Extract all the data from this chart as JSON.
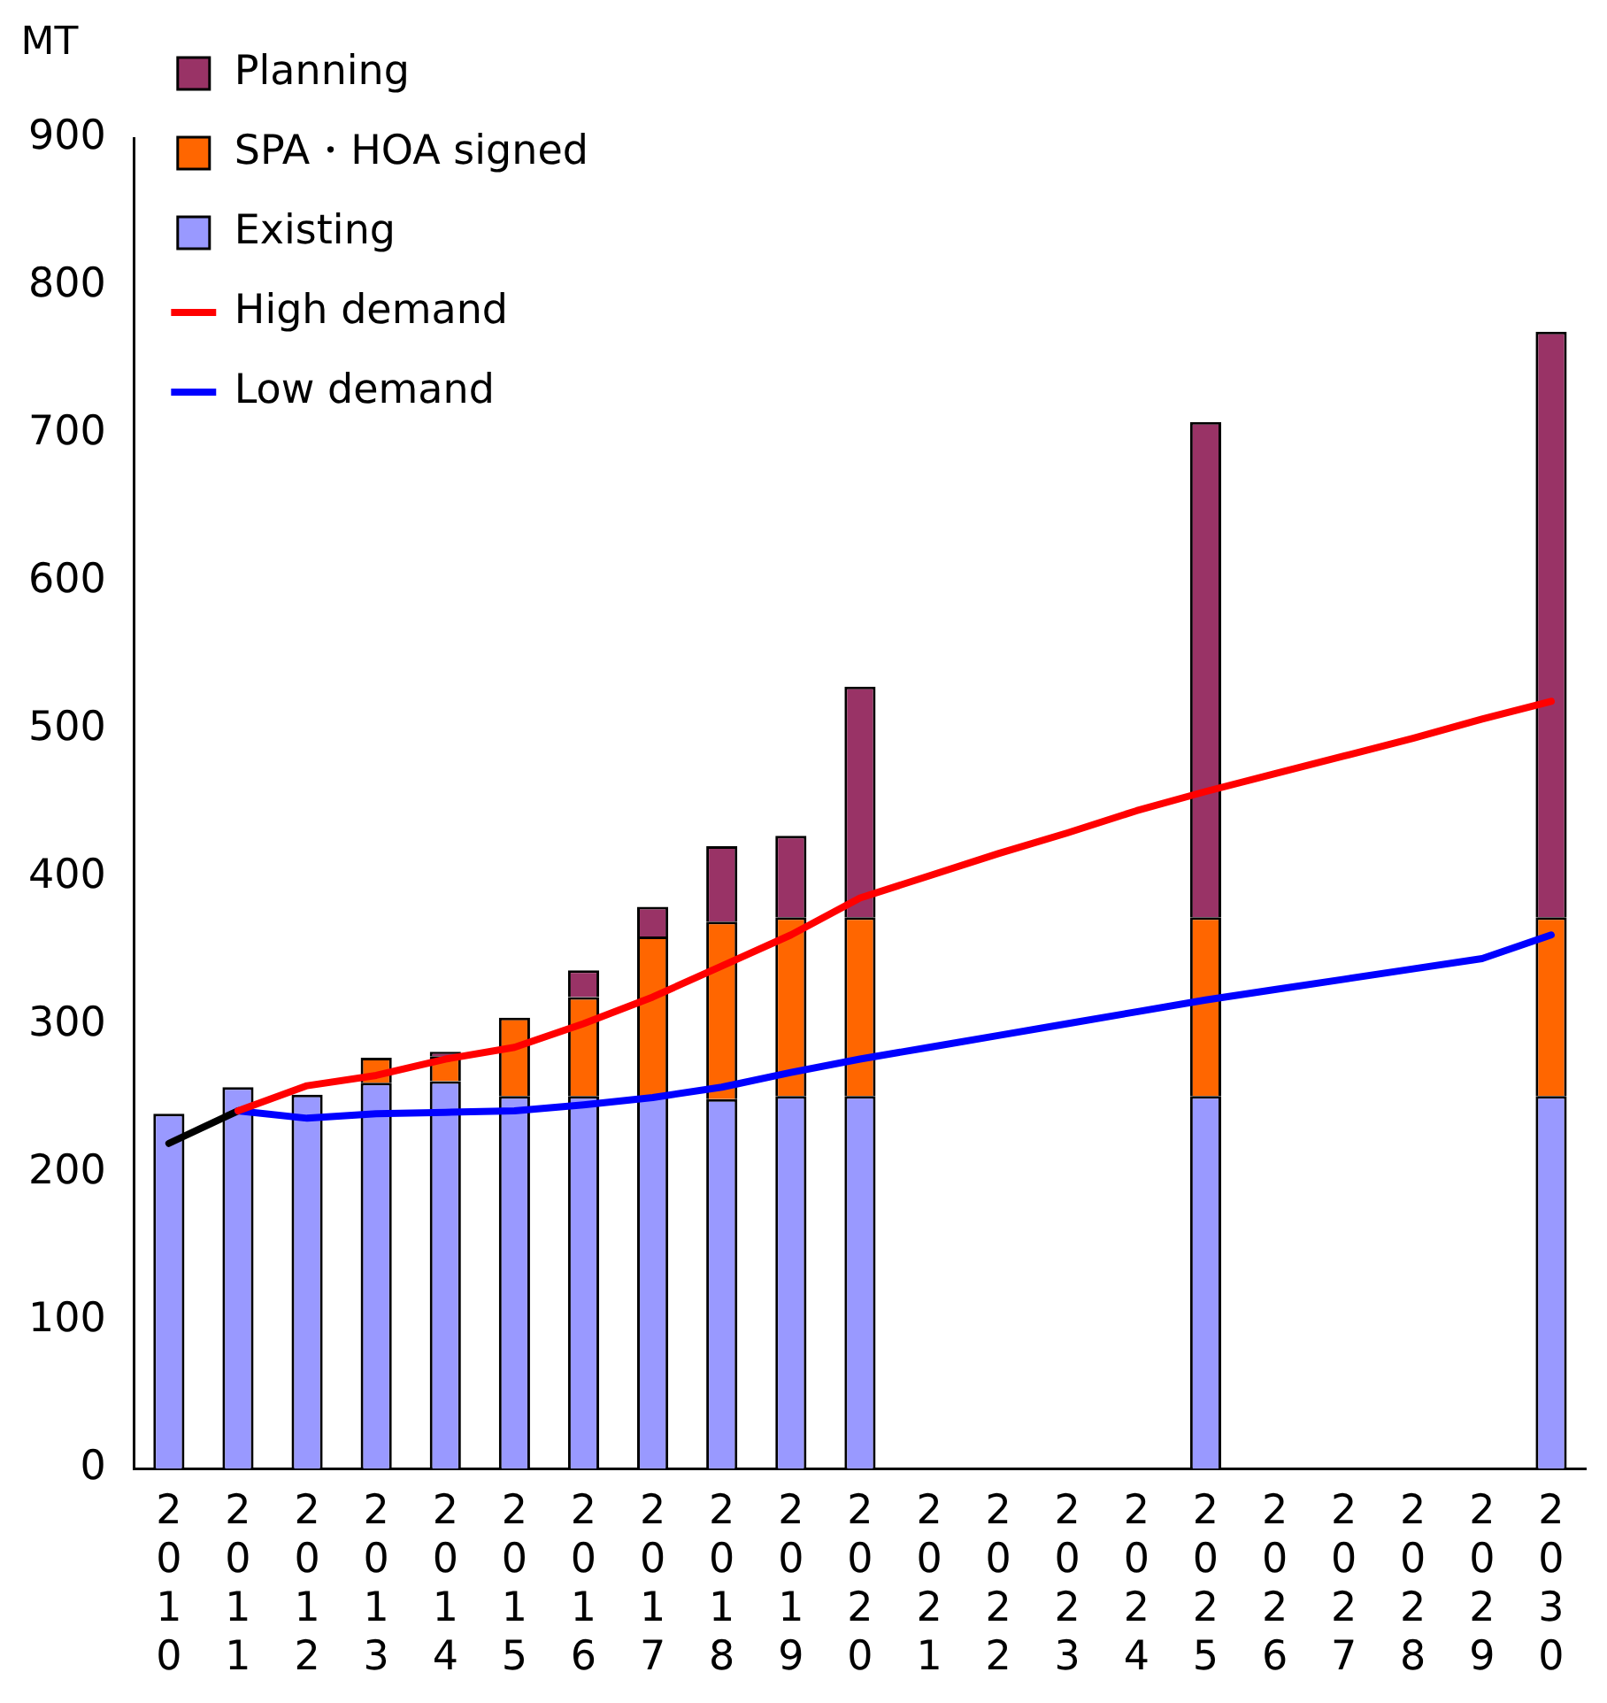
{
  "chart_data": {
    "type": "bar",
    "ylabel": "MT",
    "categories": [
      "2010",
      "2011",
      "2012",
      "2013",
      "2014",
      "2015",
      "2016",
      "2017",
      "2018",
      "2019",
      "2020",
      "2021",
      "2022",
      "2023",
      "2024",
      "2025",
      "2026",
      "2027",
      "2028",
      "2029",
      "2030"
    ],
    "stacked": true,
    "ylim": [
      0,
      900
    ],
    "yticks": [
      0,
      100,
      200,
      300,
      400,
      500,
      600,
      700,
      800,
      900
    ],
    "grid": false,
    "legend": "top left",
    "marker": "none",
    "line_style": "solid",
    "series": [
      {
        "name": "Existing",
        "color": "#9999ff",
        "values": [
          240,
          258,
          253,
          261,
          262,
          252,
          252,
          252,
          250,
          252,
          252,
          null,
          null,
          null,
          null,
          252,
          null,
          null,
          null,
          null,
          252
        ]
      },
      {
        "name": "SPA・HOA signed",
        "color": "#ff6600",
        "values": [
          null,
          null,
          null,
          17,
          17,
          53,
          67,
          108,
          120,
          121,
          121,
          null,
          null,
          null,
          null,
          121,
          null,
          null,
          null,
          null,
          121
        ]
      },
      {
        "name": "Planning",
        "color": "#993366",
        "values": [
          null,
          null,
          null,
          null,
          3,
          null,
          18,
          20,
          51,
          55,
          156,
          null,
          null,
          null,
          null,
          335,
          null,
          null,
          null,
          null,
          396
        ]
      },
      {
        "name": "High demand",
        "type": "line",
        "color": "#ff0000",
        "values": [
          null,
          242,
          259,
          266,
          277,
          285,
          301,
          319,
          340,
          361,
          386,
          401,
          416,
          430,
          445,
          458,
          470,
          482,
          494,
          507,
          519
        ]
      },
      {
        "name": "Low demand",
        "type": "line",
        "color": "#0000ff",
        "values": [
          null,
          242,
          237,
          240,
          241,
          242,
          246,
          251,
          258,
          268,
          277,
          285,
          293,
          301,
          309,
          317,
          324,
          331,
          338,
          345,
          361
        ]
      },
      {
        "type": "line",
        "color": "#000000",
        "values": [
          220,
          242,
          null,
          null,
          null,
          null,
          null,
          null,
          null,
          null,
          null,
          null,
          null,
          null,
          null,
          null,
          null,
          null,
          null,
          null,
          null
        ]
      }
    ]
  }
}
